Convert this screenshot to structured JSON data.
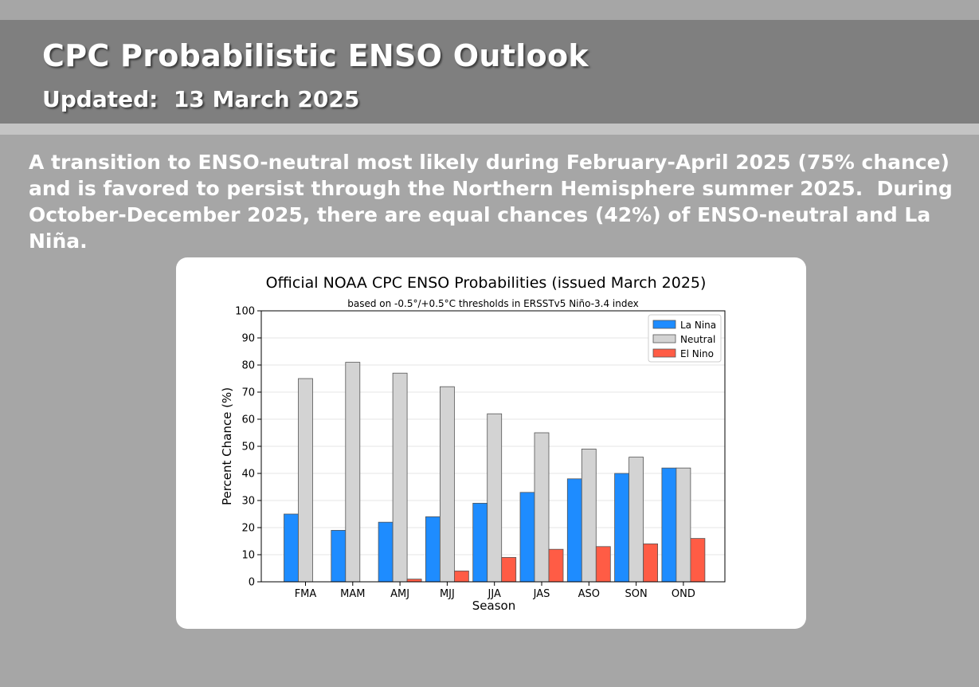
{
  "header": {
    "title": "CPC Probabilistic ENSO Outlook",
    "updated": "Updated:  13 March 2025"
  },
  "summary": "A transition to ENSO-neutral most likely during February-April 2025 (75% chance) and is favored to persist through the Northern Hemisphere summer 2025.  During October-December 2025, there are equal chances (42%) of ENSO-neutral and La Niña.",
  "colors": {
    "background": "#a6a6a6",
    "title_band": "#7f7f7f",
    "la_nina": "#1e8cff",
    "neutral": "#d3d3d3",
    "el_nino": "#ff5c45"
  },
  "chart_data": {
    "type": "bar",
    "title": "Official NOAA CPC ENSO Probabilities (issued March 2025)",
    "subtitle": "based on -0.5°/+0.5°C thresholds in ERSSTv5 Niño-3.4 index",
    "xlabel": "Season",
    "ylabel": "Percent Chance (%)",
    "ylim": [
      0,
      100
    ],
    "yticks": [
      0,
      10,
      20,
      30,
      40,
      50,
      60,
      70,
      80,
      90,
      100
    ],
    "grid": true,
    "legend_position": "top-right",
    "categories": [
      "FMA",
      "MAM",
      "AMJ",
      "MJJ",
      "JJA",
      "JAS",
      "ASO",
      "SON",
      "OND"
    ],
    "series": [
      {
        "name": "La Nina",
        "color": "#1e8cff",
        "values": [
          25,
          19,
          22,
          24,
          29,
          33,
          38,
          40,
          42
        ]
      },
      {
        "name": "Neutral",
        "color": "#d3d3d3",
        "values": [
          75,
          81,
          77,
          72,
          62,
          55,
          49,
          46,
          42
        ]
      },
      {
        "name": "El Nino",
        "color": "#ff5c45",
        "values": [
          0,
          0,
          1,
          4,
          9,
          12,
          13,
          14,
          16
        ]
      }
    ]
  }
}
